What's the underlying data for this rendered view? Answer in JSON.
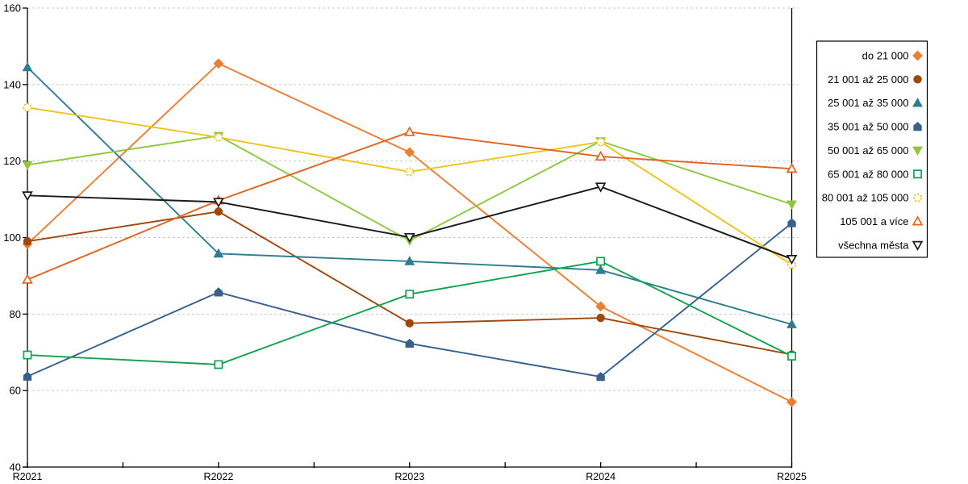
{
  "chart_data": {
    "type": "line",
    "title": "",
    "xlabel": "",
    "ylabel": "",
    "categories": [
      "R2021",
      "R2022",
      "R2023",
      "R2024",
      "R2025"
    ],
    "ylim": [
      40,
      160
    ],
    "ytick_step": 20,
    "yticks": [
      40,
      60,
      80,
      100,
      120,
      140,
      160
    ],
    "grid": "dashed-horizontal",
    "grid_color": "#c9c9c9",
    "axis_color": "#000000",
    "legend_position": "right",
    "legend_border_color": "#000000",
    "series": [
      {
        "name": "do 21 000",
        "color": "#ED7D31",
        "marker": "diamond",
        "fill": "solid",
        "values": [
          98.3,
          145.5,
          122.3,
          82.0,
          57.0
        ]
      },
      {
        "name": "21 001 až 25 000",
        "color": "#9E480E",
        "marker": "circle",
        "fill": "solid",
        "values": [
          99.0,
          106.8,
          77.6,
          79.0,
          69.4
        ]
      },
      {
        "name": "25 001 až 35 000",
        "color": "#2E7D8F",
        "marker": "triangle-up",
        "fill": "solid",
        "values": [
          144.5,
          95.8,
          93.8,
          91.5,
          77.3
        ]
      },
      {
        "name": "35 001 až 50 000",
        "color": "#38608C",
        "marker": "pentagon",
        "fill": "solid",
        "values": [
          63.7,
          85.7,
          72.3,
          63.6,
          103.8
        ]
      },
      {
        "name": "50 001 až 65 000",
        "color": "#8FC73E",
        "marker": "triangle-down",
        "fill": "solid",
        "values": [
          119.0,
          126.6,
          99.2,
          125.2,
          108.7
        ]
      },
      {
        "name": "65 001 až 80 000",
        "color": "#12A352",
        "marker": "square",
        "fill": "open",
        "values": [
          69.3,
          66.8,
          85.2,
          93.8,
          69.0
        ]
      },
      {
        "name": "80 001 až 105 000",
        "color": "#EFC319",
        "marker": "circle-dashed",
        "fill": "open",
        "values": [
          134.0,
          126.2,
          117.2,
          125.0,
          92.9
        ]
      },
      {
        "name": "105 001 a více",
        "color": "#E2631E",
        "marker": "triangle-up",
        "fill": "open",
        "values": [
          89.0,
          109.7,
          127.6,
          121.2,
          118.0
        ]
      },
      {
        "name": "všechna města",
        "color": "#1A1A1A",
        "marker": "triangle-down",
        "fill": "open",
        "values": [
          111.0,
          109.3,
          100.1,
          113.3,
          94.4
        ]
      }
    ]
  }
}
